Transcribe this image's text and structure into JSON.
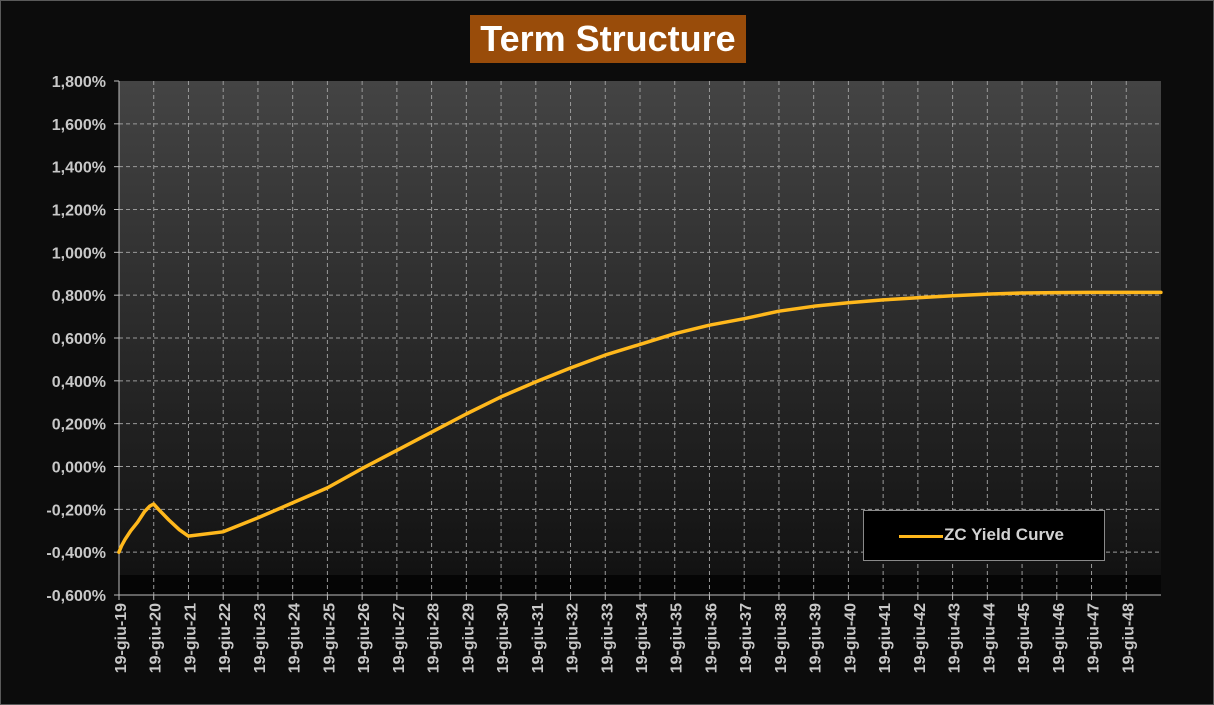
{
  "chart_data": {
    "type": "line",
    "title": "Term Structure",
    "xlabel": "",
    "ylabel": "",
    "x_tick_labels": [
      "19-giu-19",
      "19-giu-20",
      "19-giu-21",
      "19-giu-22",
      "19-giu-23",
      "19-giu-24",
      "19-giu-25",
      "19-giu-26",
      "19-giu-27",
      "19-giu-28",
      "19-giu-29",
      "19-giu-30",
      "19-giu-31",
      "19-giu-32",
      "19-giu-33",
      "19-giu-34",
      "19-giu-35",
      "19-giu-36",
      "19-giu-37",
      "19-giu-38",
      "19-giu-39",
      "19-giu-40",
      "19-giu-41",
      "19-giu-42",
      "19-giu-43",
      "19-giu-44",
      "19-giu-45",
      "19-giu-46",
      "19-giu-47",
      "19-giu-48"
    ],
    "y_tick_labels": [
      "1,800%",
      "1,600%",
      "1,400%",
      "1,200%",
      "1,000%",
      "0,800%",
      "0,600%",
      "0,400%",
      "0,200%",
      "0,000%",
      "-0,200%",
      "-0,400%",
      "-0,600%"
    ],
    "xlim": [
      2019.464,
      2049.464
    ],
    "ylim": [
      -0.6,
      1.8
    ],
    "grid": true,
    "legend_position": "bottom-right",
    "series": [
      {
        "name": "ZC Yield Curve",
        "color": "#ffb81c",
        "points": [
          [
            2019.46,
            -0.4
          ],
          [
            2019.54,
            -0.37
          ],
          [
            2019.64,
            -0.34
          ],
          [
            2019.8,
            -0.3
          ],
          [
            2020.0,
            -0.26
          ],
          [
            2020.2,
            -0.21
          ],
          [
            2020.35,
            -0.185
          ],
          [
            2020.46,
            -0.175
          ],
          [
            2020.6,
            -0.2
          ],
          [
            2020.9,
            -0.25
          ],
          [
            2021.2,
            -0.295
          ],
          [
            2021.46,
            -0.325
          ],
          [
            2022.46,
            -0.305
          ],
          [
            2023.46,
            -0.24
          ],
          [
            2024.46,
            -0.17
          ],
          [
            2025.46,
            -0.1
          ],
          [
            2026.46,
            -0.01
          ],
          [
            2027.46,
            0.075
          ],
          [
            2028.46,
            0.16
          ],
          [
            2029.46,
            0.245
          ],
          [
            2030.46,
            0.325
          ],
          [
            2031.46,
            0.395
          ],
          [
            2032.46,
            0.46
          ],
          [
            2033.46,
            0.52
          ],
          [
            2034.46,
            0.57
          ],
          [
            2035.46,
            0.62
          ],
          [
            2036.46,
            0.66
          ],
          [
            2037.46,
            0.69
          ],
          [
            2038.46,
            0.725
          ],
          [
            2039.46,
            0.748
          ],
          [
            2040.46,
            0.765
          ],
          [
            2041.46,
            0.778
          ],
          [
            2042.46,
            0.788
          ],
          [
            2043.46,
            0.797
          ],
          [
            2044.46,
            0.805
          ],
          [
            2045.46,
            0.81
          ],
          [
            2046.46,
            0.812
          ],
          [
            2047.46,
            0.813
          ],
          [
            2048.46,
            0.813
          ],
          [
            2049.46,
            0.813
          ]
        ]
      }
    ]
  }
}
